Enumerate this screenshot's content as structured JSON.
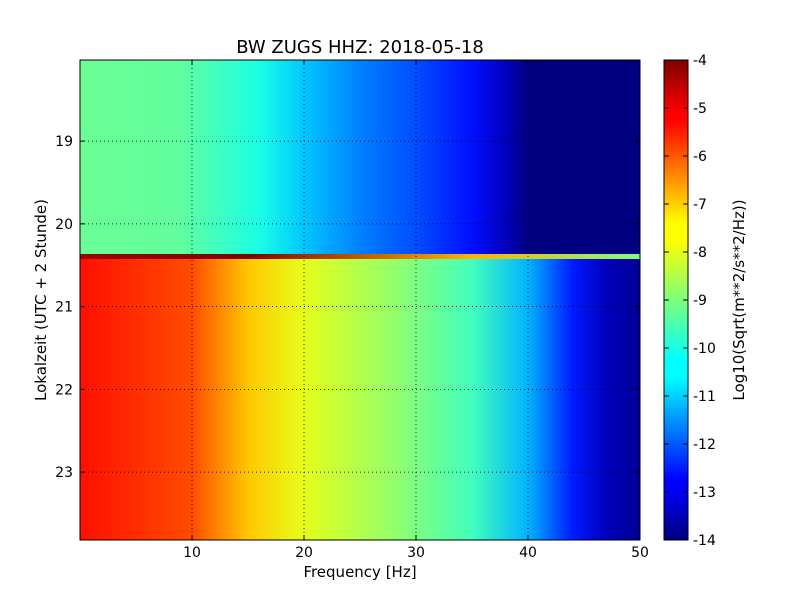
{
  "chart_data": {
    "type": "heatmap",
    "title": "BW ZUGS HHZ: 2018-05-18",
    "xlabel": "Frequency [Hz]",
    "ylabel": "Lokalzeit (UTC + 2 Stunde)",
    "colorbar_label": "Log10(Sqrt(m**2/s**2/Hz))",
    "xlim": [
      0,
      50
    ],
    "ylim": [
      18.02,
      23.82
    ],
    "y_inverted": true,
    "x_ticks": [
      "10",
      "20",
      "30",
      "40",
      "50"
    ],
    "x_tick_values": [
      10,
      20,
      30,
      40,
      50
    ],
    "y_ticks": [
      "19",
      "20",
      "21",
      "22",
      "23"
    ],
    "y_tick_values": [
      19,
      20,
      21,
      22,
      23
    ],
    "color_range": [
      -14,
      -4
    ],
    "colorbar_ticks": [
      "-4",
      "-5",
      "-6",
      "-7",
      "-8",
      "-9",
      "-10",
      "-11",
      "-12",
      "-13",
      "-14"
    ],
    "colorbar_tick_values": [
      -4,
      -5,
      -6,
      -7,
      -8,
      -9,
      -10,
      -11,
      -12,
      -13,
      -14
    ],
    "colormap": "jet",
    "grid": true,
    "grid_style": "dotted",
    "regions": [
      {
        "time_range": [
          18.02,
          20.38
        ],
        "profile": [
          {
            "f": 0,
            "v": -9.2
          },
          {
            "f": 9,
            "v": -9.3
          },
          {
            "f": 16,
            "v": -10.0
          },
          {
            "f": 20,
            "v": -10.8
          },
          {
            "f": 25,
            "v": -11.5
          },
          {
            "f": 30,
            "v": -12.0
          },
          {
            "f": 35,
            "v": -12.6
          },
          {
            "f": 38,
            "v": -13.4
          },
          {
            "f": 40,
            "v": -14.0
          },
          {
            "f": 50,
            "v": -14.0
          }
        ]
      },
      {
        "time_range": [
          20.42,
          23.82
        ],
        "profile": [
          {
            "f": 0,
            "v": -5.4
          },
          {
            "f": 10,
            "v": -6.0
          },
          {
            "f": 15,
            "v": -7.2
          },
          {
            "f": 20,
            "v": -8.0
          },
          {
            "f": 28,
            "v": -8.8
          },
          {
            "f": 35,
            "v": -9.6
          },
          {
            "f": 40,
            "v": -11.0
          },
          {
            "f": 44,
            "v": -12.5
          },
          {
            "f": 47,
            "v": -13.4
          },
          {
            "f": 50,
            "v": -13.8
          }
        ]
      }
    ],
    "transition": {
      "time": 20.4,
      "value_low_freq": -4.3,
      "value_high_freq": -9.0
    }
  }
}
